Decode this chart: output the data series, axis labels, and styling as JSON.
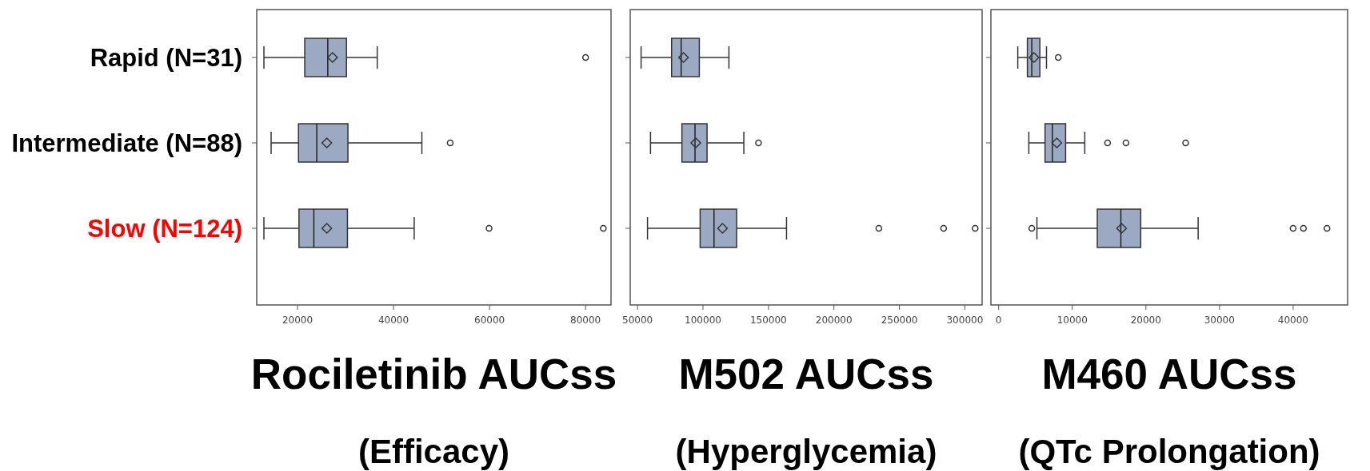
{
  "chart_data": [
    {
      "type": "box",
      "orientation": "horizontal",
      "title": "Rociletinib AUCss",
      "subtitle": "(Efficacy)",
      "categories": [
        "Rapid (N=31)",
        "Intermediate (N=88)",
        "Slow (N=124)"
      ],
      "color": "#9ba9c2",
      "xlim": [
        11500,
        85300
      ],
      "xticks": [
        20000,
        40000,
        60000,
        80000
      ],
      "boxes": [
        {
          "low": 13000,
          "q1": 21500,
          "median": 26300,
          "q3": 30200,
          "high": 36600,
          "mean": 27300,
          "outliers": [
            80000
          ]
        },
        {
          "low": 14500,
          "q1": 20200,
          "median": 24000,
          "q3": 30500,
          "high": 45900,
          "mean": 26100,
          "outliers": [
            51800
          ]
        },
        {
          "low": 13000,
          "q1": 20300,
          "median": 23400,
          "q3": 30400,
          "high": 44300,
          "mean": 26100,
          "outliers": [
            59900,
            83700
          ]
        }
      ]
    },
    {
      "type": "box",
      "orientation": "horizontal",
      "title": "M502 AUCss",
      "subtitle": "(Hyperglycemia)",
      "categories": [
        null,
        null,
        null
      ],
      "color": "#9ba9c2",
      "xlim": [
        44400,
        313200
      ],
      "xticks": [
        50000,
        100000,
        150000,
        200000,
        250000,
        300000
      ],
      "tick_labels": "x",
      "boxes": [
        {
          "low": 52700,
          "q1": 76000,
          "median": 83300,
          "q3": 97200,
          "high": 119800,
          "mean": 85100
        },
        {
          "low": 59900,
          "q1": 83900,
          "median": 93900,
          "q3": 103100,
          "high": 131200,
          "mean": 94500,
          "outliers": [
            142400
          ]
        },
        {
          "low": 57600,
          "q1": 97800,
          "median": 108400,
          "q3": 125700,
          "high": 163800,
          "mean": 114900,
          "outliers": [
            234300,
            283800,
            307900
          ]
        }
      ]
    },
    {
      "type": "box",
      "orientation": "horizontal",
      "title": "M460 AUCss",
      "subtitle": "(QTc Prolongation)",
      "categories": [
        null,
        null,
        null
      ],
      "color": "#9ba9c2",
      "xlim": [
        -1050,
        47400
      ],
      "xticks": [
        0,
        10000,
        20000,
        30000,
        40000
      ],
      "tick_labels": "x",
      "boxes": [
        {
          "low": 2600,
          "q1": 3900,
          "median": 4500,
          "q3": 5600,
          "high": 6500,
          "mean": 4800,
          "outliers": [
            8100
          ]
        },
        {
          "low": 4100,
          "q1": 6300,
          "median": 7300,
          "q3": 9100,
          "high": 11700,
          "mean": 7900,
          "outliers": [
            14800,
            17300,
            25400
          ]
        },
        {
          "low": 5200,
          "q1": 13400,
          "median": 16600,
          "q3": 19300,
          "high": 27100,
          "mean": 16700,
          "outliers": [
            4500,
            40000,
            41400,
            44600
          ]
        }
      ]
    }
  ]
}
